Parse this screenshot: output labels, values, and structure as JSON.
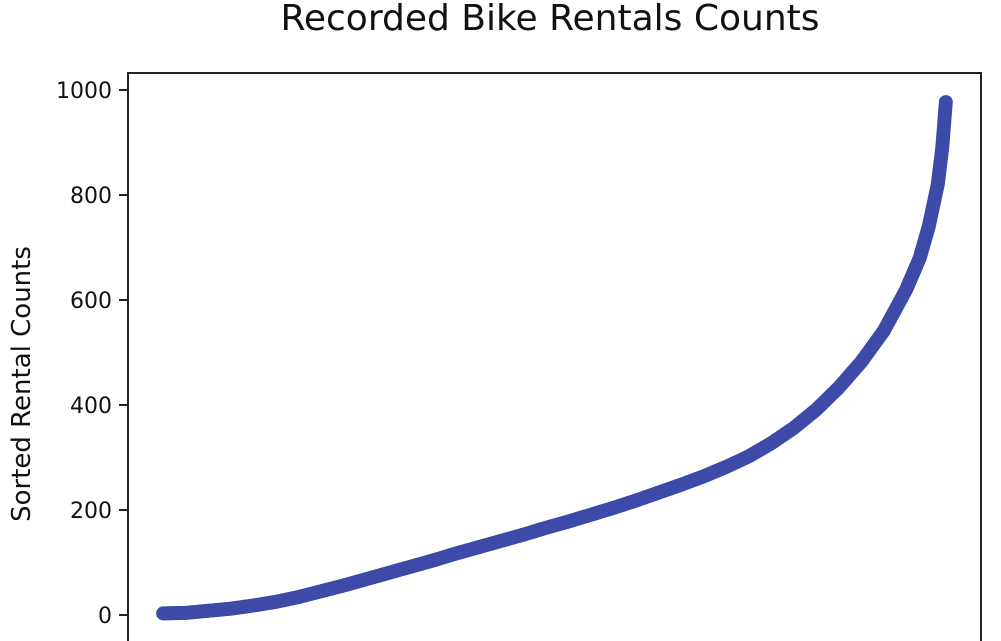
{
  "chart_data": {
    "type": "scatter",
    "title": "Recorded Bike Rentals Counts",
    "xlabel": "",
    "ylabel": "Sorted Rental Counts",
    "ylim": [
      0,
      1000
    ],
    "xlim": [
      -780,
      18160
    ],
    "grid": false,
    "yticks": [
      0,
      200,
      400,
      600,
      800,
      1000
    ],
    "yticklabels": [
      "0",
      "200",
      "400",
      "600",
      "800",
      "1000"
    ],
    "xticks": [],
    "point_color": "#3d4aa8",
    "series": [
      {
        "x": [
          0,
          500,
          1000,
          1500,
          2000,
          2500,
          3000,
          3500,
          4000,
          4500,
          5000,
          5500,
          6000,
          6500,
          7000,
          7500,
          8000,
          8500,
          9000,
          9500,
          10000,
          10500,
          11000,
          11500,
          12000,
          12500,
          13000,
          13500,
          14000,
          14500,
          15000,
          15500,
          16000,
          16500,
          16800,
          17000,
          17200,
          17300,
          17379
        ],
        "y": [
          3,
          4,
          8,
          12,
          18,
          25,
          34,
          45,
          56,
          68,
          80,
          92,
          104,
          117,
          129,
          141,
          153,
          166,
          178,
          191,
          204,
          218,
          233,
          248,
          264,
          282,
          302,
          327,
          356,
          391,
          433,
          482,
          541,
          620,
          680,
          740,
          820,
          890,
          977
        ]
      }
    ]
  }
}
